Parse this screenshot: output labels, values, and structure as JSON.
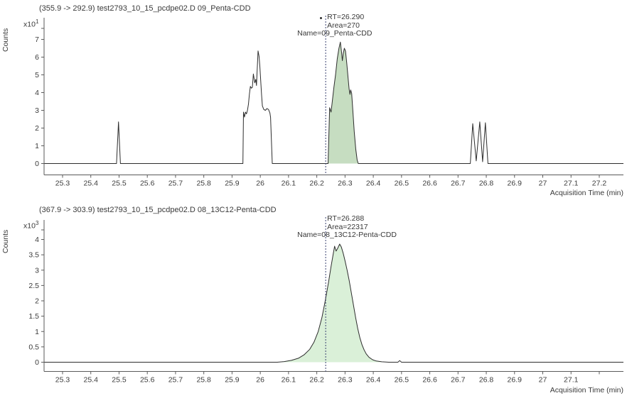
{
  "colors": {
    "trace": "#2d2d2d",
    "axis": "#5a5a5a",
    "tick_text": "#3c3c3c",
    "rt_line": "#39406f",
    "fill_top": "#c6ddc1",
    "fill_bottom": "#daf0d8",
    "background": "#ffffff"
  },
  "chart_data": [
    {
      "type": "line",
      "title": "(355.9 -> 292.9) test2793_10_15_pcdpe02.D 09_Penta-CDD",
      "ylabel": "Counts",
      "y_scale": {
        "base": "x10",
        "exp": "1"
      },
      "xlabel": "Acquisition Time (min)",
      "xlim": [
        25.2346,
        27.2856
      ],
      "ylim": [
        0,
        7.9
      ],
      "grid": false,
      "legend": null,
      "yticks": [
        {
          "v": 0,
          "label": "0"
        },
        {
          "v": 1,
          "label": "1"
        },
        {
          "v": 2,
          "label": "2"
        },
        {
          "v": 3,
          "label": "3"
        },
        {
          "v": 4,
          "label": "4"
        },
        {
          "v": 5,
          "label": "5"
        },
        {
          "v": 6,
          "label": "6"
        },
        {
          "v": 7,
          "label": "7"
        }
      ],
      "xticks": [
        {
          "v": 25.3,
          "label": "25.3"
        },
        {
          "v": 25.4,
          "label": "25.4"
        },
        {
          "v": 25.5,
          "label": "25.5"
        },
        {
          "v": 25.6,
          "label": "25.6"
        },
        {
          "v": 25.7,
          "label": "25.7"
        },
        {
          "v": 25.8,
          "label": "25.8"
        },
        {
          "v": 25.9,
          "label": "25.9"
        },
        {
          "v": 26.0,
          "label": "26"
        },
        {
          "v": 26.1,
          "label": "26.1"
        },
        {
          "v": 26.2,
          "label": "26.2"
        },
        {
          "v": 26.3,
          "label": "26.3"
        },
        {
          "v": 26.4,
          "label": "26.4"
        },
        {
          "v": 26.5,
          "label": "26.5"
        },
        {
          "v": 26.6,
          "label": "26.6"
        },
        {
          "v": 26.7,
          "label": "26.7"
        },
        {
          "v": 26.8,
          "label": "26.8"
        },
        {
          "v": 26.9,
          "label": "26.9"
        },
        {
          "v": 27.0,
          "label": "27"
        },
        {
          "v": 27.1,
          "label": "27.1"
        },
        {
          "v": 27.2,
          "label": "27.2"
        }
      ],
      "annotation": {
        "lines": [
          "RT=26.290",
          "Area=270",
          "Name=09_Penta-CDD"
        ],
        "rt": 26.29,
        "area": 270,
        "name": "09_Penta-CDD",
        "rt_line_t": 26.2315,
        "marker": true
      },
      "peak_fill": {
        "from": 26.2395,
        "to": 26.3475,
        "color": "#c6ddc1"
      },
      "series": [
        {
          "name": "09_Penta-CDD trace",
          "color": "#2d2d2d",
          "points": [
            [
              25.2346,
              0
            ],
            [
              25.491,
              0
            ],
            [
              25.498,
              2.35
            ],
            [
              25.505,
              0
            ],
            [
              25.9385,
              0
            ],
            [
              25.9405,
              2.9
            ],
            [
              25.944,
              2.62
            ],
            [
              25.9475,
              2.9
            ],
            [
              25.951,
              2.8
            ],
            [
              25.9545,
              3.0
            ],
            [
              25.958,
              3.35
            ],
            [
              25.9615,
              3.9
            ],
            [
              25.965,
              4.35
            ],
            [
              25.9685,
              4.25
            ],
            [
              25.972,
              4.3
            ],
            [
              25.9755,
              5.05
            ],
            [
              25.978,
              4.8
            ],
            [
              25.9805,
              4.55
            ],
            [
              25.984,
              4.75
            ],
            [
              25.9865,
              4.4
            ],
            [
              25.992,
              6.35
            ],
            [
              25.9955,
              6.05
            ],
            [
              25.9985,
              5.5
            ],
            [
              26.0015,
              4.7
            ],
            [
              26.0045,
              3.9
            ],
            [
              26.0075,
              3.25
            ],
            [
              26.0125,
              3.05
            ],
            [
              26.018,
              3.0
            ],
            [
              26.0235,
              3.1
            ],
            [
              26.029,
              3.05
            ],
            [
              26.034,
              2.85
            ],
            [
              26.0365,
              2.6
            ],
            [
              26.0425,
              0
            ],
            [
              26.24,
              0
            ],
            [
              26.2455,
              3.15
            ],
            [
              26.2505,
              2.9
            ],
            [
              26.2555,
              3.6
            ],
            [
              26.2605,
              4.3
            ],
            [
              26.2665,
              5.0
            ],
            [
              26.2725,
              5.9
            ],
            [
              26.2785,
              6.5
            ],
            [
              26.2835,
              6.85
            ],
            [
              26.2875,
              6.3
            ],
            [
              26.2905,
              5.8
            ],
            [
              26.2935,
              6.2
            ],
            [
              26.2975,
              6.5
            ],
            [
              26.3015,
              6.35
            ],
            [
              26.306,
              5.7
            ],
            [
              26.3105,
              4.9
            ],
            [
              26.3145,
              4.2
            ],
            [
              26.3175,
              3.9
            ],
            [
              26.32,
              4.15
            ],
            [
              26.3235,
              3.95
            ],
            [
              26.328,
              2.9
            ],
            [
              26.3325,
              1.8
            ],
            [
              26.338,
              0.8
            ],
            [
              26.343,
              0.2
            ],
            [
              26.347,
              0
            ],
            [
              26.7435,
              0
            ],
            [
              26.752,
              2.25
            ],
            [
              26.7645,
              0.15
            ],
            [
              26.777,
              2.35
            ],
            [
              26.787,
              0.1
            ],
            [
              26.797,
              2.3
            ],
            [
              26.806,
              0
            ],
            [
              27.2856,
              0
            ]
          ]
        }
      ]
    },
    {
      "type": "line",
      "title": "(367.9 -> 303.9) test2793_10_15_pcdpe02.D 08_13C12-Penta-CDD",
      "ylabel": "Counts",
      "y_scale": {
        "base": "x10",
        "exp": "3"
      },
      "xlabel": "Acquisition Time (min)",
      "xlim": [
        25.2346,
        27.2856
      ],
      "ylim": [
        0,
        4.35
      ],
      "grid": false,
      "legend": null,
      "yticks": [
        {
          "v": 0,
          "label": "0"
        },
        {
          "v": 0.5,
          "label": "0.5"
        },
        {
          "v": 1,
          "label": "1"
        },
        {
          "v": 1.5,
          "label": "1.5"
        },
        {
          "v": 2,
          "label": "2"
        },
        {
          "v": 2.5,
          "label": "2.5"
        },
        {
          "v": 3,
          "label": "3"
        },
        {
          "v": 3.5,
          "label": "3.5"
        },
        {
          "v": 4,
          "label": "4"
        }
      ],
      "xticks": [
        {
          "v": 25.3,
          "label": "25.3"
        },
        {
          "v": 25.4,
          "label": "25.4"
        },
        {
          "v": 25.5,
          "label": "25.5"
        },
        {
          "v": 25.6,
          "label": "25.6"
        },
        {
          "v": 25.7,
          "label": "25.7"
        },
        {
          "v": 25.8,
          "label": "25.8"
        },
        {
          "v": 25.9,
          "label": "25.9"
        },
        {
          "v": 26.0,
          "label": "26"
        },
        {
          "v": 26.1,
          "label": "26.1"
        },
        {
          "v": 26.2,
          "label": "26.2"
        },
        {
          "v": 26.3,
          "label": "26.3"
        },
        {
          "v": 26.4,
          "label": "26.4"
        },
        {
          "v": 26.5,
          "label": "26.5"
        },
        {
          "v": 26.6,
          "label": "26.6"
        },
        {
          "v": 26.7,
          "label": "26.7"
        },
        {
          "v": 26.8,
          "label": "26.8"
        },
        {
          "v": 26.9,
          "label": "26.9"
        },
        {
          "v": 27.0,
          "label": "27"
        },
        {
          "v": 27.1,
          "label": "27.1"
        },
        {
          "v": 27.2,
          "label": ""
        }
      ],
      "annotation": {
        "lines": [
          "RT=26.288",
          "Area=22317",
          "Name=08_13C12-Penta-CDD"
        ],
        "rt": 26.288,
        "area": 22317,
        "name": "08_13C12-Penta-CDD",
        "rt_line_t": 26.2315,
        "marker": false
      },
      "peak_fill": {
        "from": 26.06,
        "to": 26.455,
        "color": "#daf0d8"
      },
      "series": [
        {
          "name": "08_13C12-Penta-CDD trace",
          "color": "#2d2d2d",
          "points": [
            [
              25.2346,
              0
            ],
            [
              26.06,
              0
            ],
            [
              26.085,
              0.02
            ],
            [
              26.11,
              0.06
            ],
            [
              26.135,
              0.13
            ],
            [
              26.155,
              0.24
            ],
            [
              26.175,
              0.42
            ],
            [
              26.19,
              0.65
            ],
            [
              26.205,
              1.0
            ],
            [
              26.218,
              1.45
            ],
            [
              26.23,
              2.0
            ],
            [
              26.2415,
              2.6
            ],
            [
              26.251,
              3.15
            ],
            [
              26.2585,
              3.55
            ],
            [
              26.263,
              3.78
            ],
            [
              26.2685,
              3.62
            ],
            [
              26.2745,
              3.72
            ],
            [
              26.281,
              3.85
            ],
            [
              26.287,
              3.75
            ],
            [
              26.2935,
              3.55
            ],
            [
              26.3,
              3.3
            ],
            [
              26.3075,
              3.0
            ],
            [
              26.315,
              2.65
            ],
            [
              26.3225,
              2.25
            ],
            [
              26.33,
              1.85
            ],
            [
              26.3375,
              1.45
            ],
            [
              26.345,
              1.1
            ],
            [
              26.3525,
              0.8
            ],
            [
              26.36,
              0.57
            ],
            [
              26.3675,
              0.4
            ],
            [
              26.375,
              0.27
            ],
            [
              26.385,
              0.16
            ],
            [
              26.3975,
              0.08
            ],
            [
              26.41,
              0.04
            ],
            [
              26.43,
              0.015
            ],
            [
              26.455,
              0
            ],
            [
              26.487,
              0
            ],
            [
              26.4935,
              0.05
            ],
            [
              26.5,
              0
            ],
            [
              27.2856,
              0
            ]
          ]
        }
      ]
    }
  ]
}
